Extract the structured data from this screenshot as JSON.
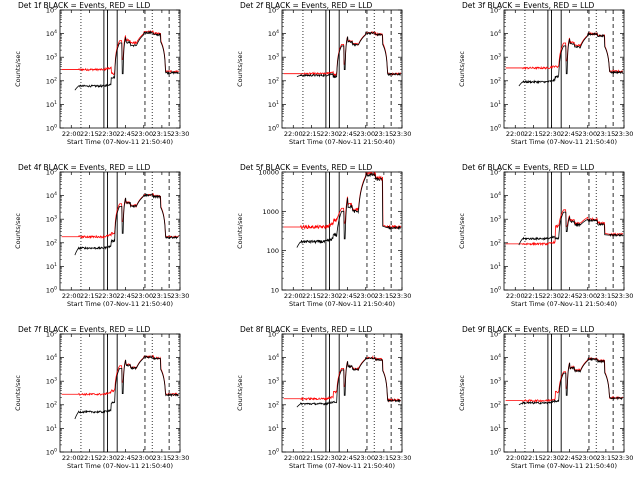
{
  "layout": {
    "rows": 3,
    "cols": 3
  },
  "chart_data": [
    {
      "type": "line",
      "title": "Det 1f BLACK = Events, RED = LLD",
      "ylabel": "Counts/sec",
      "xlabel": "Start Time (07-Nov-11 21:50:40)",
      "x_ticks": [
        "22:00",
        "22:15",
        "22:30",
        "22:45",
        "23:00",
        "23:15",
        "23:30"
      ],
      "y_ticks": [
        "10^0",
        "10^1",
        "10^2",
        "10^3",
        "10^4",
        "10^5"
      ],
      "y_scale": "log",
      "ylim": [
        1,
        100000
      ],
      "xlim": [
        "21:50:40",
        "23:30:00"
      ],
      "markers": {
        "solid": [
          "22:27",
          "22:30",
          "22:38"
        ],
        "dotted": [
          "22:08",
          "23:07"
        ],
        "dashed": [
          "23:01",
          "23:21"
        ]
      },
      "series": [
        {
          "color": "#ff0000",
          "base": 300,
          "bump": 200,
          "flare": [
            5000,
            800,
            9000,
            10000,
            12000,
            10000,
            5000
          ],
          "end": 250
        },
        {
          "color": "#000000",
          "base": 60,
          "start": 40,
          "bump": 140,
          "flare": [
            4000,
            200,
            7000,
            9000,
            11000,
            9000,
            4500
          ],
          "end": 220
        }
      ]
    },
    {
      "type": "line",
      "title": "Det 2f BLACK = Events, RED = LLD",
      "ylabel": "Counts/sec",
      "xlabel": "Start Time (07-Nov-11 21:50:40)",
      "x_ticks": [
        "22:00",
        "22:15",
        "22:30",
        "22:45",
        "23:00",
        "23:15",
        "23:30"
      ],
      "y_ticks": [
        "10^0",
        "10^1",
        "10^2",
        "10^3",
        "10^4",
        "10^5"
      ],
      "y_scale": "log",
      "ylim": [
        1,
        100000
      ],
      "xlim": [
        "21:50:40",
        "23:30:00"
      ],
      "markers": {
        "solid": [
          "22:27",
          "22:30",
          "22:38"
        ],
        "dotted": [
          "22:08",
          "23:07"
        ],
        "dashed": [
          "23:01",
          "23:21"
        ]
      },
      "series": [
        {
          "color": "#ff0000",
          "base": 200,
          "bump": 180,
          "flare": [
            3500,
            500,
            8000,
            9500,
            11000,
            9500,
            4000
          ],
          "end": 200
        },
        {
          "color": "#000000",
          "base": 170,
          "start": 150,
          "bump": 150,
          "flare": [
            3000,
            300,
            7500,
            9000,
            10500,
            9000,
            3500
          ],
          "end": 190
        }
      ]
    },
    {
      "type": "line",
      "title": "Det 3f BLACK = Events, RED = LLD",
      "ylabel": "Counts/sec",
      "xlabel": "Start Time (07-Nov-11 21:50:40)",
      "x_ticks": [
        "22:00",
        "22:15",
        "22:30",
        "22:45",
        "23:00",
        "23:15",
        "23:30"
      ],
      "y_ticks": [
        "10^0",
        "10^1",
        "10^2",
        "10^3",
        "10^4",
        "10^5"
      ],
      "y_scale": "log",
      "ylim": [
        1,
        100000
      ],
      "xlim": [
        "21:50:40",
        "23:30:00"
      ],
      "markers": {
        "solid": [
          "22:27",
          "22:30",
          "22:38"
        ],
        "dotted": [
          "22:08",
          "23:07"
        ],
        "dashed": [
          "23:01",
          "23:21"
        ]
      },
      "series": [
        {
          "color": "#ff0000",
          "base": 350,
          "bump": 400,
          "flare": [
            4000,
            700,
            7000,
            8500,
            10000,
            8500,
            3000
          ],
          "end": 250
        },
        {
          "color": "#000000",
          "base": 90,
          "start": 60,
          "bump": 150,
          "flare": [
            3000,
            200,
            6000,
            8000,
            9500,
            8000,
            2800
          ],
          "end": 230
        }
      ]
    },
    {
      "type": "line",
      "title": "Det 4f BLACK = Events, RED = LLD",
      "ylabel": "Counts/sec",
      "xlabel": "Start Time (07-Nov-11 21:50:40)",
      "x_ticks": [
        "22:00",
        "22:15",
        "22:30",
        "22:45",
        "23:00",
        "23:15",
        "23:30"
      ],
      "y_ticks": [
        "10^0",
        "10^1",
        "10^2",
        "10^3",
        "10^4",
        "10^5"
      ],
      "y_scale": "log",
      "ylim": [
        1,
        100000
      ],
      "xlim": [
        "21:50:40",
        "23:30:00"
      ],
      "markers": {
        "solid": [
          "22:27",
          "22:30",
          "22:38"
        ],
        "dotted": [
          "22:08",
          "23:07"
        ],
        "dashed": [
          "23:01",
          "23:21"
        ]
      },
      "series": [
        {
          "color": "#ff0000",
          "base": 180,
          "bump": 250,
          "flare": [
            4500,
            800,
            8500,
            10000,
            11000,
            9500,
            3500
          ],
          "end": 180
        },
        {
          "color": "#000000",
          "base": 60,
          "start": 30,
          "bump": 120,
          "flare": [
            3500,
            250,
            8000,
            9500,
            10500,
            9000,
            3200
          ],
          "end": 170
        }
      ]
    },
    {
      "type": "line",
      "title": "Det 5f BLACK = Events, RED = LLD",
      "ylabel": "Counts/sec",
      "xlabel": "Start Time (07-Nov-11 21:50:40)",
      "x_ticks": [
        "22:00",
        "22:15",
        "22:30",
        "22:45",
        "23:00",
        "23:15",
        "23:30"
      ],
      "y_ticks": [
        "10",
        "100",
        "1000",
        "10000"
      ],
      "y_scale": "log",
      "ylim": [
        10,
        10000
      ],
      "xlim": [
        "21:50:40",
        "23:30:00"
      ],
      "markers": {
        "solid": [
          "22:27",
          "22:30",
          "22:38"
        ],
        "dotted": [
          "22:08",
          "23:07"
        ],
        "dashed": [
          "23:01",
          "23:21"
        ]
      },
      "series": [
        {
          "color": "#ff0000",
          "base": 400,
          "bump": 600,
          "flare": [
            1200,
            500,
            2500,
            8000,
            9000,
            7000,
            450
          ],
          "end": 400
        },
        {
          "color": "#000000",
          "base": 170,
          "start": 120,
          "bump": 250,
          "flare": [
            1000,
            200,
            2200,
            7500,
            8500,
            6500,
            420
          ],
          "end": 380
        }
      ]
    },
    {
      "type": "line",
      "title": "Det 6f BLACK = Events, RED = LLD",
      "ylabel": "Counts/sec",
      "xlabel": "Start Time (07-Nov-11 21:50:40)",
      "x_ticks": [
        "22:00",
        "22:15",
        "22:30",
        "22:45",
        "23:00",
        "23:15",
        "23:30"
      ],
      "y_ticks": [
        "10^0",
        "10^1",
        "10^2",
        "10^3",
        "10^4",
        "10^5"
      ],
      "y_scale": "log",
      "ylim": [
        1,
        100000
      ],
      "xlim": [
        "21:50:40",
        "23:30:00"
      ],
      "markers": {
        "solid": [
          "22:27",
          "22:30",
          "22:38"
        ],
        "dotted": [
          "22:08",
          "23:07"
        ],
        "dashed": [
          "23:01",
          "23:21"
        ]
      },
      "series": [
        {
          "color": "#ff0000",
          "base": 90,
          "bump": 500,
          "flare": [
            2500,
            500,
            1500,
            1200,
            1000,
            700,
            250
          ],
          "end": 230
        },
        {
          "color": "#000000",
          "base": 150,
          "start": 80,
          "bump": 150,
          "flare": [
            2000,
            300,
            1300,
            1000,
            900,
            600,
            220
          ],
          "end": 210
        }
      ]
    },
    {
      "type": "line",
      "title": "Det 7f BLACK = Events, RED = LLD",
      "ylabel": "Counts/sec",
      "xlabel": "Start Time (07-Nov-11 21:50:40)",
      "x_ticks": [
        "22:00",
        "22:15",
        "22:30",
        "22:45",
        "23:00",
        "23:15",
        "23:30"
      ],
      "y_ticks": [
        "10^0",
        "10^1",
        "10^2",
        "10^3",
        "10^4",
        "10^5"
      ],
      "y_scale": "log",
      "ylim": [
        1,
        100000
      ],
      "xlim": [
        "21:50:40",
        "23:30:00"
      ],
      "markers": {
        "solid": [
          "22:27",
          "22:30",
          "22:38"
        ],
        "dotted": [
          "22:08",
          "23:07"
        ],
        "dashed": [
          "23:01",
          "23:21"
        ]
      },
      "series": [
        {
          "color": "#ff0000",
          "base": 280,
          "bump": 400,
          "flare": [
            4500,
            900,
            8500,
            10000,
            11000,
            9500,
            3500
          ],
          "end": 280
        },
        {
          "color": "#000000",
          "base": 50,
          "start": 25,
          "bump": 120,
          "flare": [
            3500,
            300,
            8000,
            9500,
            10500,
            9000,
            3200
          ],
          "end": 260
        }
      ]
    },
    {
      "type": "line",
      "title": "Det 8f BLACK = Events, RED = LLD",
      "ylabel": "Counts/sec",
      "xlabel": "Start Time (07-Nov-11 21:50:40)",
      "x_ticks": [
        "22:00",
        "22:15",
        "22:30",
        "22:45",
        "23:00",
        "23:15",
        "23:30"
      ],
      "y_ticks": [
        "10^0",
        "10^1",
        "10^2",
        "10^3",
        "10^4",
        "10^5"
      ],
      "y_scale": "log",
      "ylim": [
        1,
        100000
      ],
      "xlim": [
        "21:50:40",
        "23:30:00"
      ],
      "markers": {
        "solid": [
          "22:27",
          "22:30",
          "22:38"
        ],
        "dotted": [
          "22:08",
          "23:07"
        ],
        "dashed": [
          "23:01",
          "23:21"
        ]
      },
      "series": [
        {
          "color": "#ff0000",
          "base": 180,
          "bump": 350,
          "flare": [
            3500,
            600,
            7500,
            9000,
            10000,
            8500,
            3000
          ],
          "end": 160
        },
        {
          "color": "#000000",
          "base": 110,
          "start": 80,
          "bump": 130,
          "flare": [
            3000,
            250,
            7000,
            8500,
            9500,
            8000,
            2800
          ],
          "end": 150
        }
      ]
    },
    {
      "type": "line",
      "title": "Det 9f BLACK = Events, RED = LLD",
      "ylabel": "Counts/sec",
      "xlabel": "Start Time (07-Nov-11 21:50:40)",
      "x_ticks": [
        "22:00",
        "22:15",
        "22:30",
        "22:45",
        "23:00",
        "23:15",
        "23:30"
      ],
      "y_ticks": [
        "10^0",
        "10^1",
        "10^2",
        "10^3",
        "10^4",
        "10^5"
      ],
      "y_scale": "log",
      "ylim": [
        1,
        100000
      ],
      "xlim": [
        "21:50:40",
        "23:30:00"
      ],
      "markers": {
        "solid": [
          "22:27",
          "22:30",
          "22:38"
        ],
        "dotted": [
          "22:08",
          "23:07"
        ],
        "dashed": [
          "23:01",
          "23:21"
        ]
      },
      "series": [
        {
          "color": "#ff0000",
          "base": 150,
          "bump": 350,
          "flare": [
            2500,
            500,
            6500,
            8000,
            9000,
            7500,
            2500
          ],
          "end": 200
        },
        {
          "color": "#000000",
          "base": 120,
          "start": 100,
          "bump": 140,
          "flare": [
            2200,
            250,
            6000,
            7500,
            8500,
            7000,
            2300
          ],
          "end": 190
        }
      ]
    }
  ]
}
